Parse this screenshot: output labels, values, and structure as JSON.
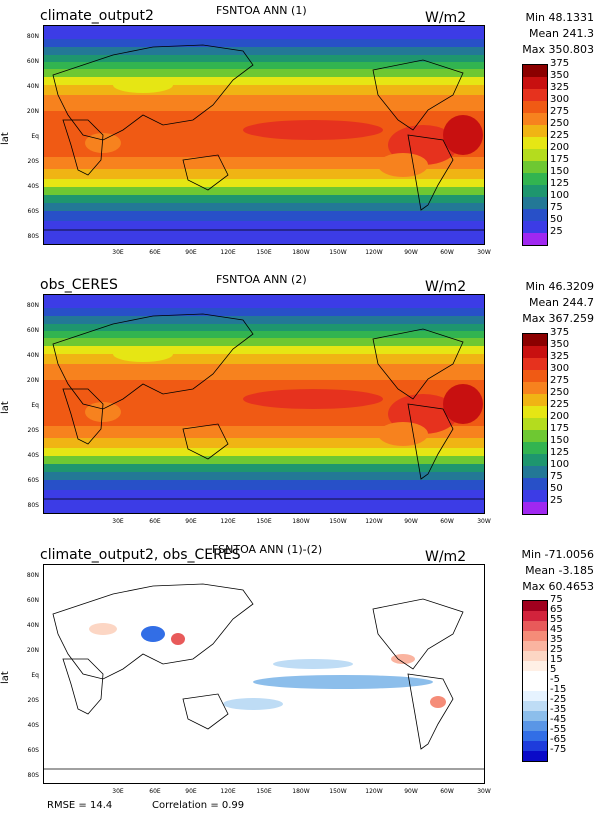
{
  "panels": [
    {
      "id": "p1",
      "title": "FSNTOA ANN (1)",
      "left_label": "climate_output2",
      "units": "W/m2",
      "stats": [
        "Min 48.1331",
        "Mean 241.3",
        "Max 350.803"
      ],
      "colorbar_labels": [
        "375",
        "350",
        "325",
        "300",
        "275",
        "250",
        "225",
        "200",
        "175",
        "150",
        "125",
        "100",
        "75",
        "50",
        "25"
      ],
      "colors": [
        "#8b0000",
        "#c81010",
        "#e6321e",
        "#f05a14",
        "#f7821e",
        "#f0b414",
        "#e6e614",
        "#b4dc1e",
        "#6ec832",
        "#32b450",
        "#1e966e",
        "#237896",
        "#2850c8",
        "#3c3ce6",
        "#a028f0"
      ],
      "ylabel": "lat"
    },
    {
      "id": "p2",
      "title": "FSNTOA ANN (2)",
      "left_label": "obs_CERES",
      "units": "W/m2",
      "stats": [
        "Min 46.3209",
        "Mean 244.7",
        "Max 367.259"
      ],
      "colorbar_labels": [
        "375",
        "350",
        "325",
        "300",
        "275",
        "250",
        "225",
        "200",
        "175",
        "150",
        "125",
        "100",
        "75",
        "50",
        "25"
      ],
      "colors": [
        "#8b0000",
        "#c81010",
        "#e6321e",
        "#f05a14",
        "#f7821e",
        "#f0b414",
        "#e6e614",
        "#b4dc1e",
        "#6ec832",
        "#32b450",
        "#1e966e",
        "#237896",
        "#2850c8",
        "#3c3ce6",
        "#a028f0"
      ],
      "ylabel": "lat"
    },
    {
      "id": "p3",
      "title": "FSNTOA ANN (1)-(2)",
      "left_label": "climate_output2, obs_CERES",
      "units": "W/m2",
      "stats": [
        "Min -71.0056",
        "Mean -3.185",
        "Max 60.4653"
      ],
      "colorbar_labels": [
        "75",
        "65",
        "55",
        "45",
        "35",
        "25",
        "15",
        "5",
        "-5",
        "-15",
        "-25",
        "-35",
        "-45",
        "-55",
        "-65",
        "-75"
      ],
      "colors": [
        "#a0001e",
        "#d2233c",
        "#e85a5a",
        "#f58c78",
        "#fab4a0",
        "#fcd6c4",
        "#fff0e6",
        "#ffffff",
        "#ffffff",
        "#e6f3ff",
        "#bedcf5",
        "#8cbeeb",
        "#5a96e6",
        "#326ee6",
        "#1e3cdc",
        "#0a0ac8"
      ],
      "ylabel": "lat"
    }
  ],
  "lat_ticks": [
    "80N",
    "60N",
    "40N",
    "20N",
    "Eq",
    "20S",
    "40S",
    "60S",
    "80S"
  ],
  "lon_ticks": [
    "30E",
    "60E",
    "90E",
    "120E",
    "150E",
    "180W",
    "150W",
    "120W",
    "90W",
    "60W",
    "30W"
  ],
  "footer": {
    "rmse": "RMSE = 14.4",
    "correlation": "Correlation = 0.99"
  },
  "map_data": {
    "type": "global_contour_maps",
    "variable": "FSNTOA",
    "season": "ANN",
    "units": "W/m2"
  }
}
